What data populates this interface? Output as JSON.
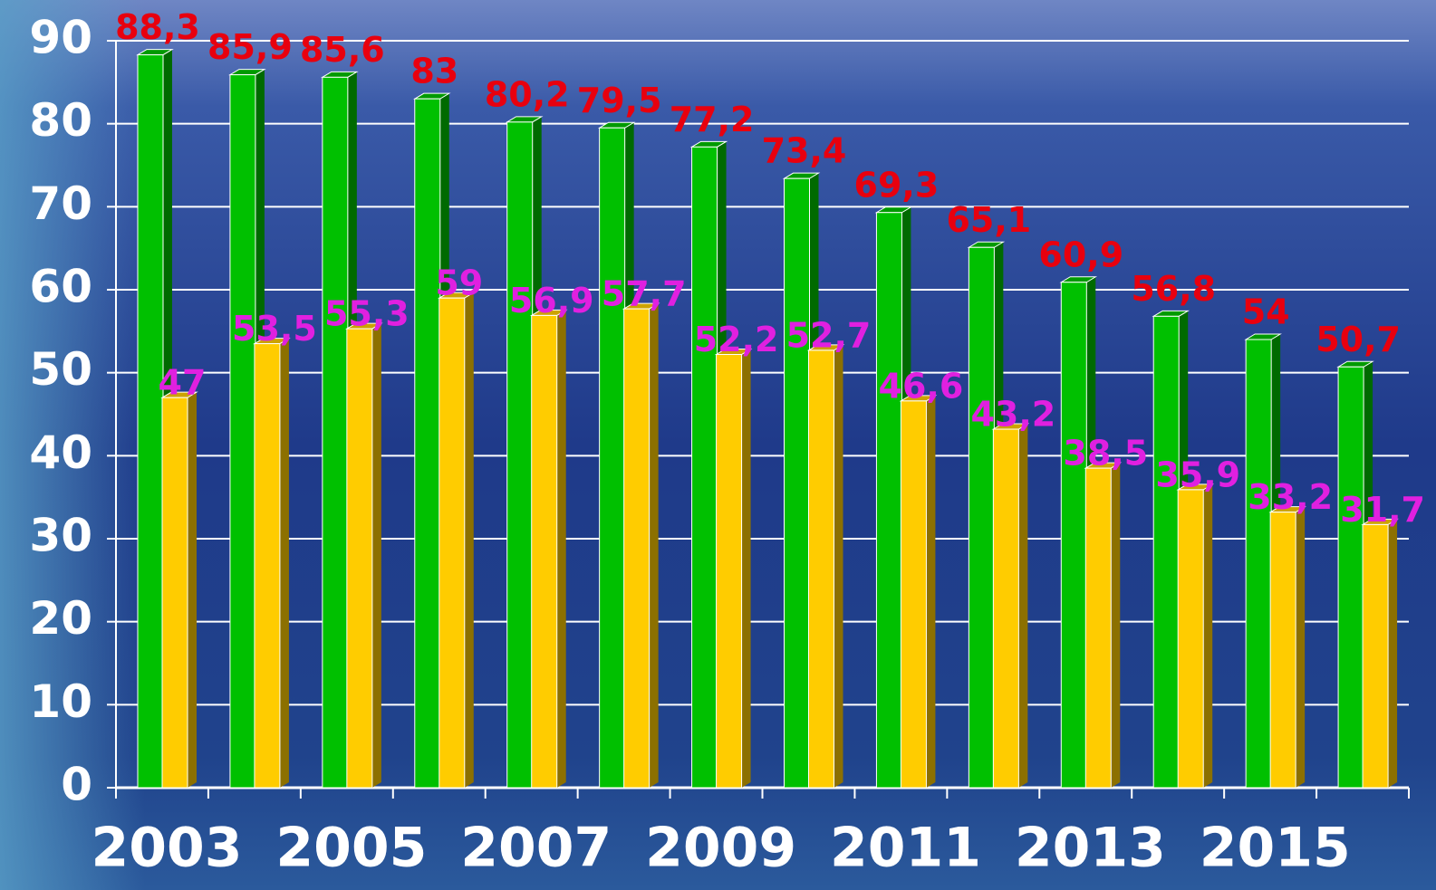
{
  "chart_data": {
    "type": "bar",
    "categories": [
      "2003",
      null,
      "2005",
      null,
      "2007",
      null,
      "2009",
      null,
      "2011",
      null,
      "2013",
      null,
      "2015",
      null
    ],
    "series": [
      {
        "color": "#00c000",
        "label_color": "#e8000e",
        "values": [
          88.3,
          85.9,
          85.6,
          83,
          80.2,
          79.5,
          77.2,
          73.4,
          69.3,
          65.1,
          60.9,
          56.8,
          54,
          50.7
        ],
        "value_labels": [
          "88,3",
          "85,9",
          "85,6",
          "83",
          "80,2",
          "79,5",
          "77,2",
          "73,4",
          "69,3",
          "65,1",
          "60,9",
          "56,8",
          "54",
          "50,7"
        ]
      },
      {
        "color": "#ffcc00",
        "label_color": "#e020e0",
        "values": [
          47,
          53.5,
          55.3,
          59,
          56.9,
          57.7,
          52.2,
          52.7,
          46.6,
          43.2,
          38.5,
          35.9,
          33.2,
          31.7
        ],
        "value_labels": [
          "47",
          "53,5",
          "55,3",
          "59",
          "56,9",
          "57,7",
          "52,2",
          "52,7",
          "46,6",
          "43,2",
          "38,5",
          "35,9",
          "33,2",
          "31,7"
        ]
      }
    ],
    "ylim": [
      0,
      90
    ],
    "yticks": [
      0,
      10,
      20,
      30,
      40,
      50,
      60,
      70,
      80,
      90
    ],
    "grid": true
  }
}
